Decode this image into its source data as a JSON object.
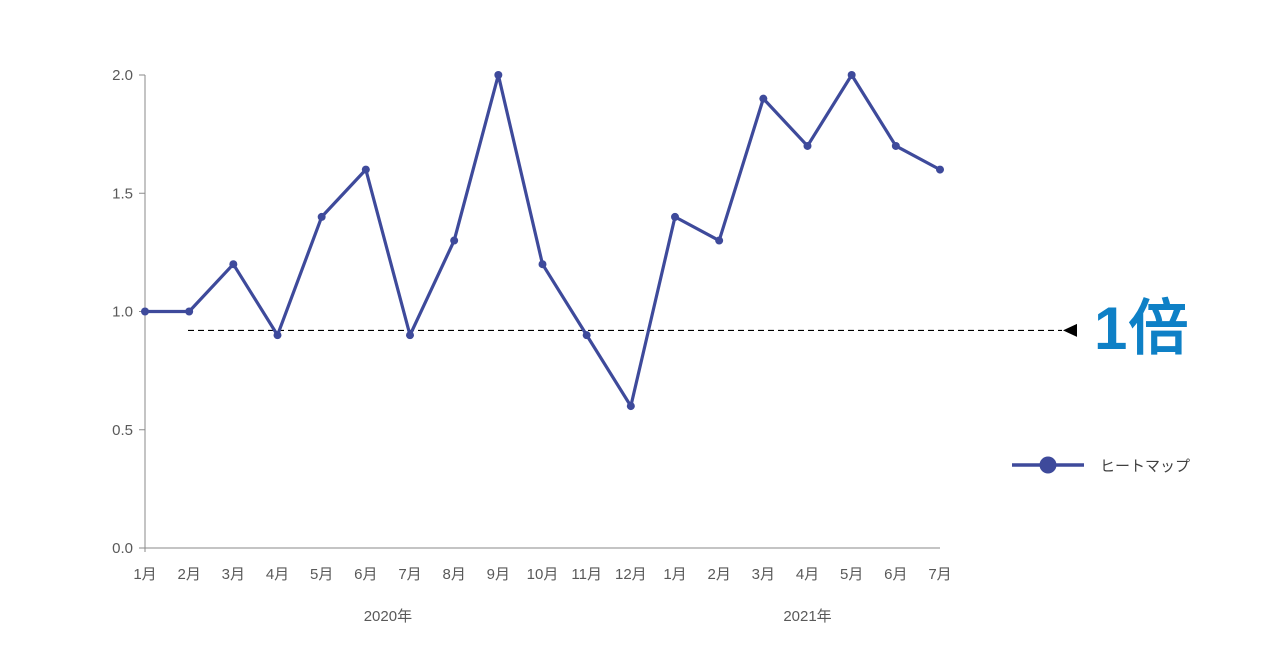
{
  "chart_data": {
    "type": "line",
    "title": "",
    "xlabel": "",
    "ylabel": "",
    "categories": [
      "1月",
      "2月",
      "3月",
      "4月",
      "5月",
      "6月",
      "7月",
      "8月",
      "9月",
      "10月",
      "11月",
      "12月",
      "1月",
      "2月",
      "3月",
      "4月",
      "5月",
      "6月",
      "7月"
    ],
    "year_groups": [
      {
        "label": "2020年",
        "start_index": 0,
        "end_index": 11
      },
      {
        "label": "2021年",
        "start_index": 12,
        "end_index": 18
      }
    ],
    "series": [
      {
        "name": "ヒートマップ",
        "color": "#3e4a9b",
        "values": [
          1.0,
          1.0,
          1.2,
          0.9,
          1.4,
          1.6,
          0.9,
          1.3,
          2.0,
          1.2,
          0.9,
          0.6,
          1.4,
          1.3,
          1.9,
          1.7,
          2.0,
          1.7,
          1.6
        ]
      }
    ],
    "ylim": [
      0.0,
      2.0
    ],
    "yticks": [
      "0.0",
      "0.5",
      "1.0",
      "1.5",
      "2.0"
    ],
    "grid": false,
    "legend_position": "right",
    "annotation": {
      "label": "1倍",
      "value": 0.92,
      "color": "#0e80c6",
      "line_style": "dashed",
      "arrow": "left"
    }
  },
  "colors": {
    "series_line": "#3e4a9b",
    "annotation_text": "#0e80c6",
    "axis_line": "#8a8a8a",
    "tick_text": "#595959",
    "dashed_line": "#000000",
    "background": "#ffffff"
  }
}
